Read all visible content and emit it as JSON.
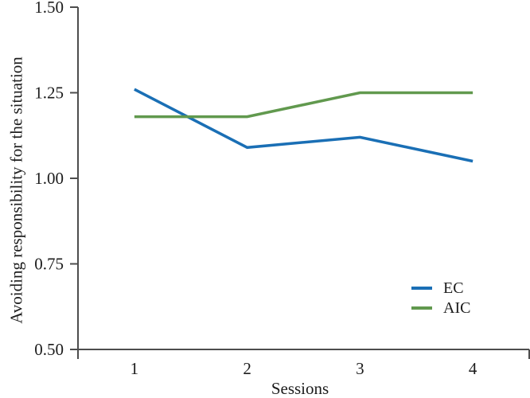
{
  "chart_data": {
    "type": "line",
    "title": "",
    "xlabel": "Sessions",
    "ylabel": "Avoiding responsibility for the situation",
    "categories": [
      "1",
      "2",
      "3",
      "4"
    ],
    "series": [
      {
        "name": "EC",
        "color": "#1a6fb5",
        "values": [
          1.26,
          1.09,
          1.12,
          1.05
        ]
      },
      {
        "name": "AIC",
        "color": "#61994e",
        "values": [
          1.18,
          1.18,
          1.25,
          1.25
        ]
      }
    ],
    "ylim": [
      0.5,
      1.5
    ],
    "y_tick_values": [
      1.5,
      1.25,
      1.0,
      0.75,
      0.5
    ],
    "y_tick_labels": [
      "1.50",
      "1.25",
      "1.00",
      "0.75",
      "0.50"
    ],
    "grid": false,
    "legend_position": "inside-lower-right",
    "axis_color": "#4d4d4d",
    "text_color": "#1c1c1c"
  }
}
